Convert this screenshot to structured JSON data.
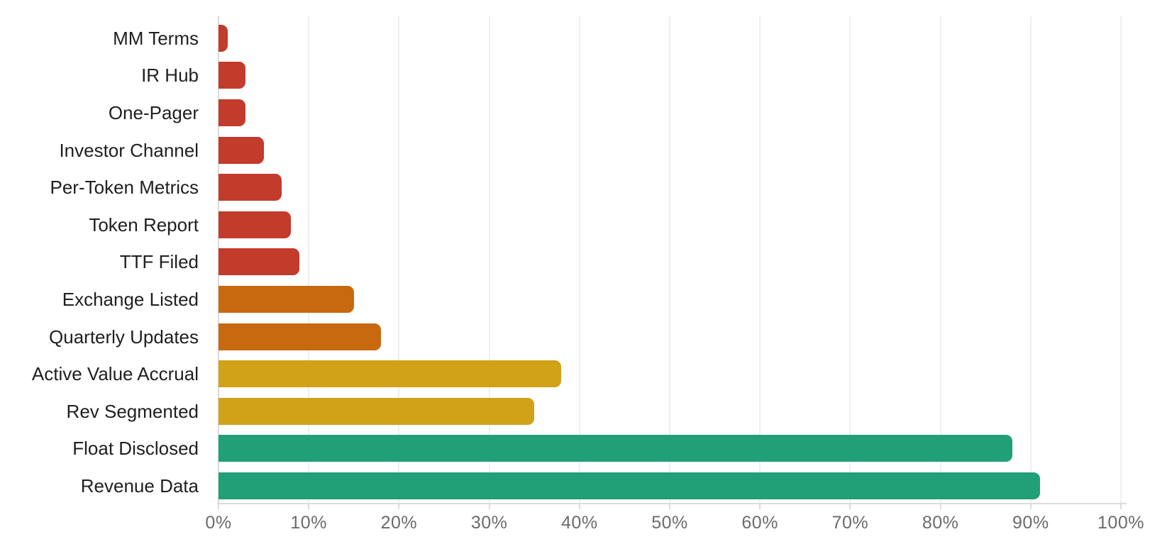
{
  "chart_data": {
    "type": "bar",
    "orientation": "horizontal",
    "title": "",
    "xlabel": "",
    "ylabel": "",
    "unit": "%",
    "xlim": [
      0,
      100
    ],
    "grid": "vertical",
    "legend": "none",
    "categories": [
      "MM Terms",
      "IR Hub",
      "One-Pager",
      "Investor Channel",
      "Per-Token Metrics",
      "Token Report",
      "TTF Filed",
      "Exchange Listed",
      "Quarterly Updates",
      "Active Value Accrual",
      "Rev Segmented",
      "Float Disclosed",
      "Revenue Data"
    ],
    "values": [
      1,
      3,
      3,
      5,
      7,
      8,
      9,
      15,
      18,
      38,
      35,
      88,
      91
    ],
    "bar_colors": [
      "#c23b2b",
      "#c23b2b",
      "#c23b2b",
      "#c23b2b",
      "#c23b2b",
      "#c23b2b",
      "#c23b2b",
      "#c8690f",
      "#c8690f",
      "#d1a117",
      "#d1a117",
      "#21a078",
      "#21a078"
    ],
    "x_tick_labels": [
      "0%",
      "10%",
      "20%",
      "30%",
      "40%",
      "50%",
      "60%",
      "70%",
      "80%",
      "90%",
      "100%"
    ],
    "x_tick_values": [
      0,
      10,
      20,
      30,
      40,
      50,
      60,
      70,
      80,
      90,
      100
    ]
  },
  "colors": {
    "low_red": "#c23b2b",
    "mid_orange": "#c8690f",
    "high_gold": "#d1a117",
    "top_green": "#21a078",
    "gridline": "#efefef",
    "axis": "#dcdcdc",
    "category_label": "#1f1f1f",
    "tick_label": "#6b6b6b",
    "background": "#ffffff"
  }
}
